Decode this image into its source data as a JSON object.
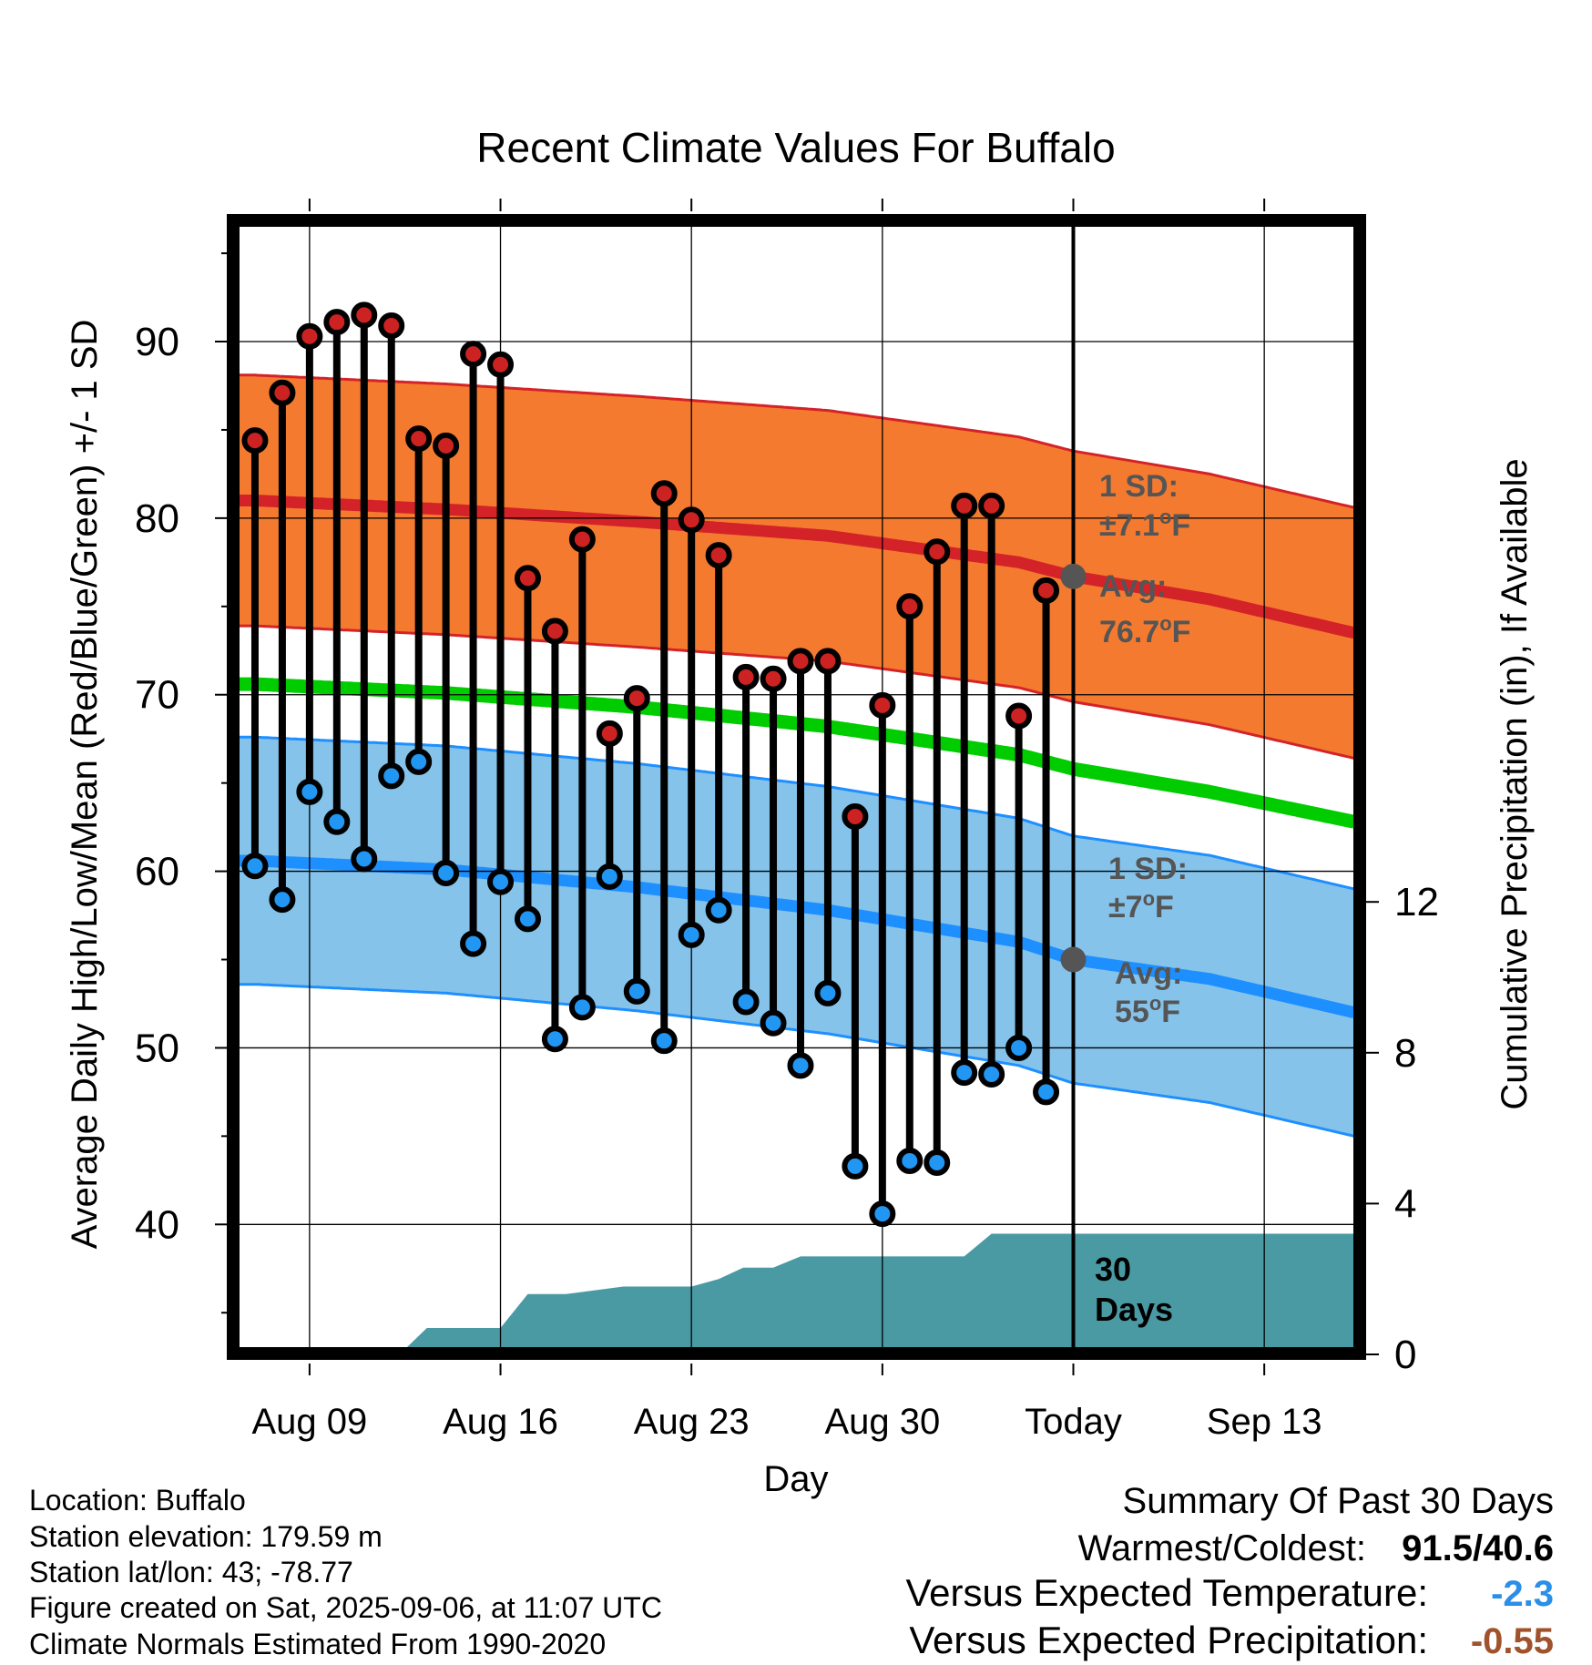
{
  "chart_data": {
    "type": "line",
    "title": "Recent Climate Values For Buffalo",
    "xlabel": "Day",
    "ylabel": "Average Daily High/Low/Mean (Red/Blue/Green) +/- 1 SD",
    "y2label": "Cumulative Precipitation (in), If Available",
    "x_ticks": [
      "Aug 09",
      "Aug 16",
      "Aug 23",
      "Aug 30",
      "Today",
      "Sep 13"
    ],
    "x_tick_days": [
      0,
      7,
      14,
      21,
      28,
      35
    ],
    "xlim_days": [
      -2.6,
      38.3
    ],
    "x_day_zero": "Aug 09",
    "ylim": [
      33.0,
      96.5
    ],
    "y_ticks": [
      40,
      50,
      60,
      70,
      80,
      90
    ],
    "y2lim": [
      0,
      30
    ],
    "y2_ticks": [
      0,
      4,
      8,
      12
    ],
    "grid": true,
    "today_line_day": 28,
    "today_label": "30 Days",
    "observed": {
      "days": [
        -2,
        -1,
        0,
        1,
        2,
        3,
        4,
        5,
        6,
        7,
        8,
        9,
        10,
        11,
        12,
        13,
        14,
        15,
        16,
        17,
        18,
        19,
        20,
        21,
        22,
        23,
        24,
        25,
        26,
        27
      ],
      "high": [
        84.4,
        87.1,
        90.3,
        91.1,
        91.5,
        90.9,
        84.5,
        84.1,
        89.3,
        88.7,
        76.6,
        73.6,
        78.8,
        67.8,
        69.8,
        81.4,
        79.9,
        77.9,
        71.0,
        70.9,
        71.9,
        71.9,
        63.1,
        69.4,
        75.0,
        78.1,
        80.7,
        80.7,
        68.8,
        75.9
      ],
      "low": [
        60.3,
        58.4,
        64.5,
        62.8,
        60.7,
        65.4,
        66.2,
        59.9,
        55.9,
        59.4,
        57.3,
        50.5,
        52.3,
        59.7,
        53.2,
        50.4,
        56.4,
        57.8,
        52.6,
        51.4,
        49.0,
        53.1,
        43.3,
        40.6,
        43.6,
        43.5,
        48.6,
        48.5,
        50.0,
        47.5
      ]
    },
    "normals": {
      "days": [
        -2,
        5,
        12,
        19,
        26,
        28,
        33,
        38.3
      ],
      "avg_high": [
        81.0,
        80.5,
        79.8,
        79.0,
        77.5,
        76.7,
        75.4,
        73.5
      ],
      "avg_low": [
        60.6,
        60.1,
        59.1,
        57.8,
        56.0,
        55.0,
        53.9,
        52.0
      ],
      "mean": [
        70.6,
        70.1,
        69.3,
        68.2,
        66.6,
        65.8,
        64.5,
        62.8
      ],
      "high_sd": 7.1,
      "low_sd": 7.0
    },
    "precip_cumulative": {
      "days": [
        3.3,
        4.3,
        7.0,
        8.0,
        9.4,
        11.5,
        14.0,
        15.0,
        15.9,
        17.0,
        18.0,
        18.8,
        24.0,
        25.0,
        38.3
      ],
      "values": [
        0,
        0.7,
        0.7,
        1.6,
        1.6,
        1.8,
        1.8,
        2.0,
        2.3,
        2.3,
        2.6,
        2.6,
        2.6,
        3.2,
        3.2
      ]
    },
    "annotations": {
      "high_sd_title": "1 SD:",
      "high_sd_value": "±7.1",
      "low_sd_title": "1 SD:",
      "low_sd_value": "±7",
      "avg_title": "Avg:",
      "avg_high_value": "76.7",
      "avg_low_value": "55",
      "deg_unit": "o",
      "f_unit": "F"
    },
    "colors": {
      "high_band": "#f47a30",
      "high_line": "#d42328",
      "low_band": "#85c3ea",
      "low_line": "#1e8fff",
      "mean_line": "#00cc00",
      "precip": "#4a9aa3",
      "high_marker": "#cc2222",
      "low_marker": "#2196f3",
      "annotation": "#555555"
    }
  },
  "footer": {
    "location": "Location: Buffalo",
    "elevation": "Station elevation: 179.59 m",
    "latlon": "Station lat/lon: 43; -78.77",
    "created": "Figure created on Sat, 2025-09-06, at 11:07 UTC",
    "normals": "Climate Normals Estimated From 1990-2020"
  },
  "summary": {
    "title": "Summary Of Past 30 Days",
    "warm_cold_label": "Warmest/Coldest:",
    "warm_cold_value": "91.5/40.6",
    "temp_label": "Versus Expected Temperature:",
    "temp_value": "-2.3",
    "temp_color": "#2a8fe8",
    "precip_label": "Versus Expected Precipitation:",
    "precip_value": "-0.55",
    "precip_color": "#a0522d"
  }
}
